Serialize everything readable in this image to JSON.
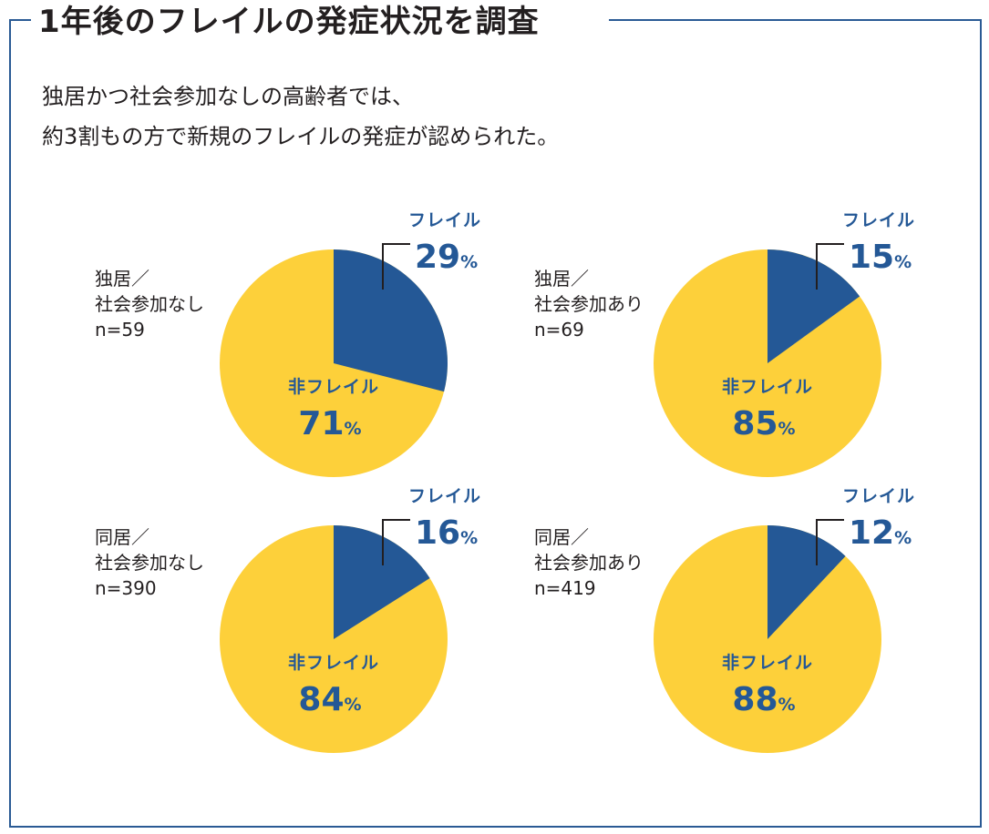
{
  "title": "1年後のフレイルの発症状況を調査",
  "subtitle": {
    "line1": "独居かつ社会参加なしの高齢者では、",
    "line2": "約3割もの方で新規のフレイルの発症が認められた。"
  },
  "colors": {
    "frail": "#245896",
    "non_frail": "#fdd03a",
    "frame": "#2a5a94",
    "leader": "#231f20"
  },
  "chart_data": [
    {
      "type": "pie",
      "title": "独居／社会参加なし",
      "group_line1": "独居／",
      "group_line2": "社会参加なし",
      "n_label": "n=59",
      "slices": [
        {
          "label": "フレイル",
          "value": 29
        },
        {
          "label": "非フレイル",
          "value": 71
        }
      ],
      "unit": "%"
    },
    {
      "type": "pie",
      "title": "独居／社会参加あり",
      "group_line1": "独居／",
      "group_line2": "社会参加あり",
      "n_label": "n=69",
      "slices": [
        {
          "label": "フレイル",
          "value": 15
        },
        {
          "label": "非フレイル",
          "value": 85
        }
      ],
      "unit": "%"
    },
    {
      "type": "pie",
      "title": "同居／社会参加なし",
      "group_line1": "同居／",
      "group_line2": "社会参加なし",
      "n_label": "n=390",
      "slices": [
        {
          "label": "フレイル",
          "value": 16
        },
        {
          "label": "非フレイル",
          "value": 84
        }
      ],
      "unit": "%"
    },
    {
      "type": "pie",
      "title": "同居／社会参加あり",
      "group_line1": "同居／",
      "group_line2": "社会参加あり",
      "n_label": "n=419",
      "slices": [
        {
          "label": "フレイル",
          "value": 12
        },
        {
          "label": "非フレイル",
          "value": 88
        }
      ],
      "unit": "%"
    }
  ]
}
